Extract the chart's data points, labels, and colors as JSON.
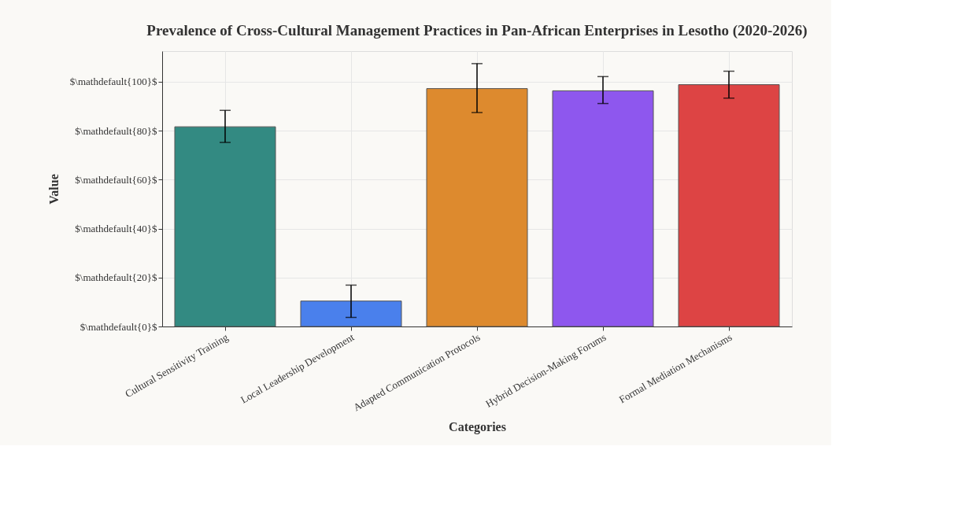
{
  "chart_data": {
    "type": "bar",
    "title": "Prevalence of Cross-Cultural Management Practices in Pan-African Enterprises in Lesotho (2020-2026)",
    "xlabel": "Categories",
    "ylabel": "Value",
    "categories": [
      "Cultural Sensitivity Training",
      "Local Leadership Development",
      "Adapted Communication Protocols",
      "Hybrid Decision-Making Forums",
      "Formal Mediation Mechanisms"
    ],
    "values": [
      81.6,
      10.4,
      97.2,
      96.3,
      98.8
    ],
    "colors": [
      "#338a82",
      "#4a80ec",
      "#dd8a2e",
      "#8e57ee",
      "#dd4444"
    ],
    "errors": [
      [
        75.2,
        88.3
      ],
      [
        3.7,
        16.9
      ],
      [
        87.4,
        107.4
      ],
      [
        91.1,
        102.1
      ],
      [
        93.3,
        104.3
      ]
    ],
    "ylim": [
      0,
      112.5
    ],
    "yticks": [
      {
        "value": 0,
        "label": "$\\mathdefault{0}$"
      },
      {
        "value": 20,
        "label": "$\\mathdefault{20}$"
      },
      {
        "value": 40,
        "label": "$\\mathdefault{40}$"
      },
      {
        "value": 60,
        "label": "$\\mathdefault{60}$"
      },
      {
        "value": 80,
        "label": "$\\mathdefault{80}$"
      },
      {
        "value": 100,
        "label": "$\\mathdefault{100}$"
      }
    ],
    "grid": true
  }
}
